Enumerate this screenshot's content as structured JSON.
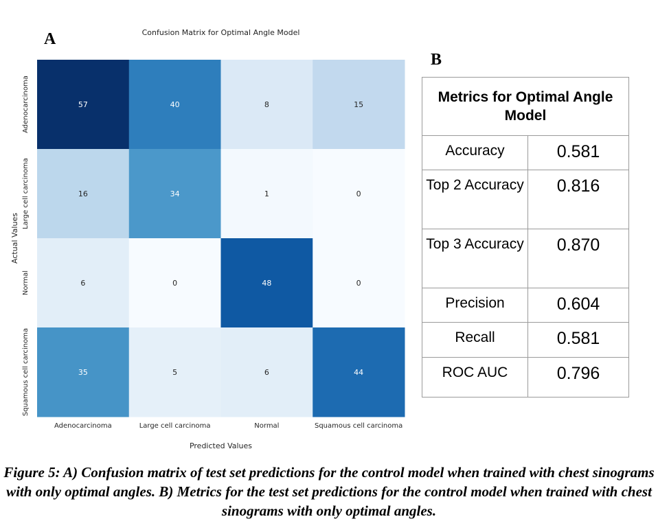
{
  "panel_a_label": "A",
  "panel_b_label": "B",
  "chart_data": {
    "type": "heatmap",
    "title": "Confusion Matrix for Optimal Angle Model",
    "xlabel": "Predicted Values",
    "ylabel": "Actual Values",
    "x_categories": [
      "Adenocarcinoma",
      "Large cell carcinoma",
      "Normal",
      "Squamous cell carcinoma"
    ],
    "y_categories": [
      "Adenocarcinoma",
      "Large cell carcinoma",
      "Normal",
      "Squamous cell carcinoma"
    ],
    "values": [
      [
        57,
        40,
        8,
        15
      ],
      [
        16,
        34,
        1,
        0
      ],
      [
        6,
        0,
        48,
        0
      ],
      [
        35,
        5,
        6,
        44
      ]
    ],
    "colormap": "Blues",
    "vmin": 0,
    "vmax": 57,
    "colorbar": false
  },
  "metrics_table": {
    "title": "Metrics for Optimal Angle Model",
    "rows": [
      {
        "name": "Accuracy",
        "value": "0.581"
      },
      {
        "name": "Top 2 Accuracy",
        "value": "0.816"
      },
      {
        "name": "Top 3 Accuracy",
        "value": "0.870"
      },
      {
        "name": "Precision",
        "value": "0.604"
      },
      {
        "name": "Recall",
        "value": "0.581"
      },
      {
        "name": "ROC AUC",
        "value": "0.796"
      }
    ]
  },
  "caption": "Figure 5: A) Confusion matrix of test set predictions for the control model when trained with chest sinograms with only optimal angles. B) Metrics for the test set predictions for the control model when trained with chest sinograms with only optimal angles."
}
